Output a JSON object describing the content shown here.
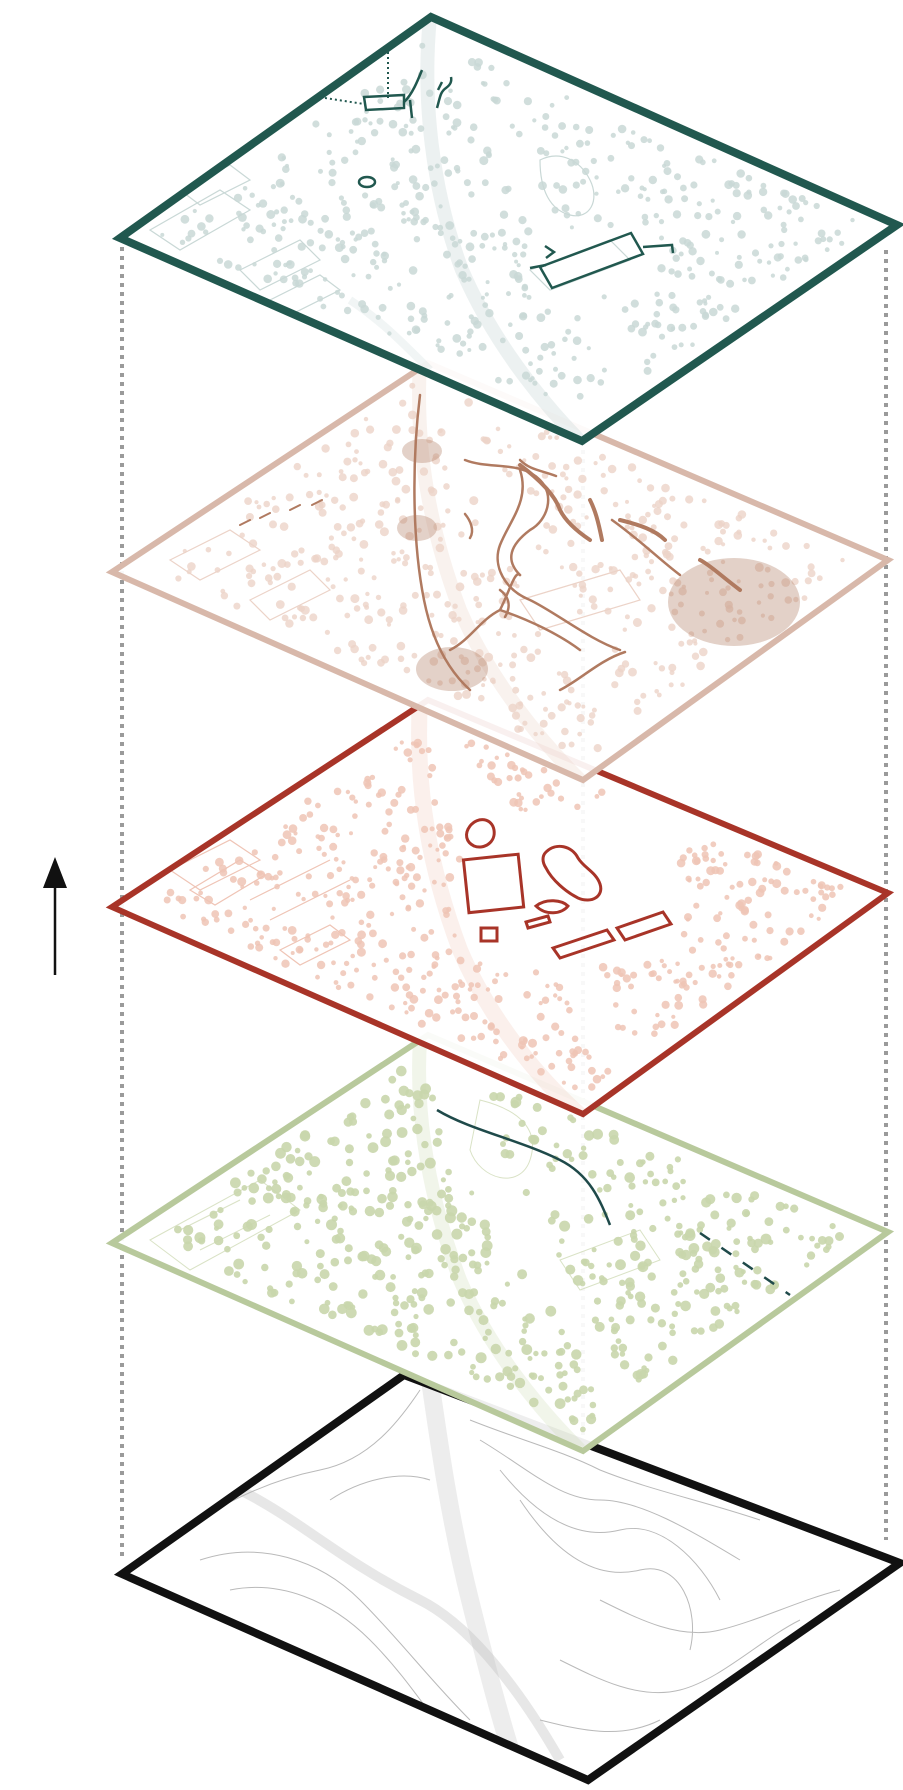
{
  "diagram": {
    "direction_arrow": {
      "icon": "arrow-up-icon",
      "color": "#111111"
    },
    "guide_line_color": "#9a9a9a",
    "layers": [
      {
        "id": "buildings",
        "frame_color": "#21584f",
        "detail_color": "#c9d8d6",
        "accent_color": "#21584f"
      },
      {
        "id": "paths",
        "frame_color": "#d8b8aa",
        "detail_color": "#ecd3c8",
        "accent_color": "#b07a60"
      },
      {
        "id": "program",
        "frame_color": "#a83428",
        "detail_color": "#efc4b5",
        "accent_color": "#a83428"
      },
      {
        "id": "vegetation",
        "frame_color": "#b8c99c",
        "detail_color": "#c9d6ac",
        "accent_color": "#1f4a4a"
      },
      {
        "id": "topography",
        "frame_color": "#111111",
        "detail_color": "#b9b9b9",
        "accent_color": "#7a7a7a"
      }
    ]
  }
}
